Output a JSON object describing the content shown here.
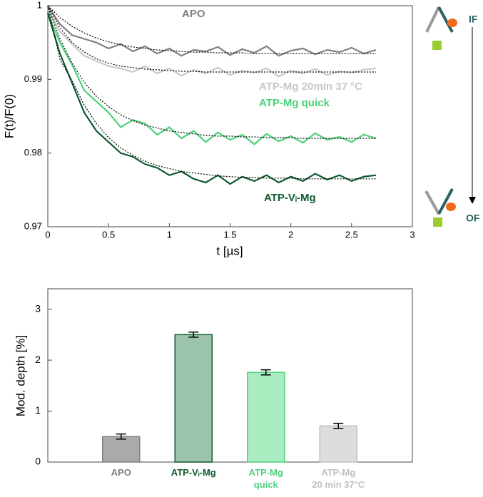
{
  "chart_data": [
    {
      "type": "line",
      "xlabel": "t [µs]",
      "ylabel": "F(t)/F(0)",
      "x": [
        0,
        0.1,
        0.2,
        0.3,
        0.4,
        0.5,
        0.6,
        0.7,
        0.8,
        0.9,
        1.0,
        1.1,
        1.2,
        1.3,
        1.4,
        1.5,
        1.6,
        1.7,
        1.8,
        1.9,
        2.0,
        2.1,
        2.2,
        2.3,
        2.4,
        2.5,
        2.6,
        2.7
      ],
      "xlim": [
        0,
        3
      ],
      "xticks": [
        0,
        0.5,
        1,
        1.5,
        2,
        2.5,
        3
      ],
      "ylim": [
        0.97,
        1
      ],
      "yticks": [
        0.97,
        0.98,
        0.99,
        1
      ],
      "series": [
        {
          "name": "APO",
          "color": "#808080",
          "values": [
            1.0,
            0.9975,
            0.996,
            0.9955,
            0.995,
            0.9942,
            0.9948,
            0.9938,
            0.9945,
            0.9935,
            0.9942,
            0.9932,
            0.994,
            0.9938,
            0.9944,
            0.9933,
            0.9941,
            0.9936,
            0.9945,
            0.9932,
            0.9939,
            0.9942,
            0.9934,
            0.994,
            0.9937,
            0.9943,
            0.9935,
            0.994
          ]
        },
        {
          "name": "ATP-Mg 20min 37 °C",
          "color": "#c8c8c8",
          "values": [
            0.9995,
            0.9965,
            0.9948,
            0.9932,
            0.9925,
            0.9918,
            0.9915,
            0.991,
            0.9918,
            0.9908,
            0.9915,
            0.9905,
            0.9913,
            0.9908,
            0.9916,
            0.9906,
            0.9912,
            0.9909,
            0.9915,
            0.9904,
            0.9912,
            0.9908,
            0.9914,
            0.9906,
            0.9911,
            0.9909,
            0.9913,
            0.9915
          ]
        },
        {
          "name": "ATP-Mg quick",
          "color": "#4cd17a",
          "values": [
            0.999,
            0.995,
            0.992,
            0.9885,
            0.987,
            0.9855,
            0.9835,
            0.9845,
            0.984,
            0.9825,
            0.9835,
            0.982,
            0.983,
            0.9815,
            0.9828,
            0.9818,
            0.9825,
            0.9812,
            0.9826,
            0.9816,
            0.9823,
            0.9814,
            0.9827,
            0.9818,
            0.9822,
            0.9815,
            0.9825,
            0.982
          ]
        },
        {
          "name": "ATP-Vᵢ-Mg",
          "color": "#0e5a2e",
          "values": [
            0.999,
            0.9935,
            0.9895,
            0.9855,
            0.983,
            0.9815,
            0.98,
            0.9795,
            0.9785,
            0.978,
            0.977,
            0.9775,
            0.9765,
            0.976,
            0.977,
            0.9758,
            0.9768,
            0.9762,
            0.977,
            0.976,
            0.9768,
            0.9762,
            0.9772,
            0.9764,
            0.977,
            0.9762,
            0.9768,
            0.977
          ]
        }
      ],
      "fits": [
        {
          "color": "#000000",
          "values": [
            1.0,
            0.9984,
            0.9972,
            0.9963,
            0.9956,
            0.9951,
            0.9947,
            0.9944,
            0.9942,
            0.994,
            0.9939,
            0.9938,
            0.9937,
            0.9937,
            0.9936,
            0.9936,
            0.9936,
            0.9935,
            0.9935,
            0.9935,
            0.9935,
            0.9935,
            0.9935,
            0.9935,
            0.9935,
            0.9935,
            0.9935,
            0.9935
          ]
        },
        {
          "color": "#000000",
          "values": [
            1.0,
            0.997,
            0.995,
            0.9937,
            0.9928,
            0.9922,
            0.9918,
            0.9916,
            0.9914,
            0.9913,
            0.9912,
            0.9911,
            0.9911,
            0.991,
            0.991,
            0.991,
            0.991,
            0.991,
            0.991,
            0.991,
            0.991,
            0.991,
            0.991,
            0.991,
            0.991,
            0.991,
            0.991,
            0.991
          ]
        },
        {
          "color": "#000000",
          "values": [
            1.0,
            0.9955,
            0.9922,
            0.9896,
            0.9877,
            0.9863,
            0.9852,
            0.9844,
            0.9838,
            0.9834,
            0.983,
            0.9828,
            0.9826,
            0.9824,
            0.9823,
            0.9823,
            0.9822,
            0.9822,
            0.9821,
            0.9821,
            0.9821,
            0.982,
            0.982,
            0.982,
            0.982,
            0.982,
            0.982,
            0.982
          ]
        },
        {
          "color": "#000000",
          "values": [
            1.0,
            0.9927,
            0.9898,
            0.9865,
            0.984,
            0.9821,
            0.9807,
            0.9797,
            0.9789,
            0.9783,
            0.9779,
            0.9775,
            0.9773,
            0.9771,
            0.9769,
            0.9768,
            0.9767,
            0.9767,
            0.9766,
            0.9766,
            0.9766,
            0.9765,
            0.9765,
            0.9765,
            0.9765,
            0.9765,
            0.9765,
            0.9765
          ]
        }
      ],
      "state_labels": {
        "top": "IF",
        "bottom": "OF"
      }
    },
    {
      "type": "bar",
      "ylabel": "Mod. depth [%]",
      "categories": [
        "APO",
        "ATP-Vᵢ-Mg",
        "ATP-Mg\nquick",
        "ATP-Mg\n20 min 37°C"
      ],
      "values": [
        0.5,
        2.5,
        1.76,
        0.71
      ],
      "errors": [
        0.05,
        0.05,
        0.05,
        0.05
      ],
      "colors": [
        "#808080",
        "#0e5a2e",
        "#4cd17a",
        "#c0c0c0"
      ],
      "fill_colors": [
        "#aaaaaa",
        "#9cc4ac",
        "#a8ecc0",
        "#dddddd"
      ],
      "ylim": [
        0,
        3.4
      ],
      "yticks": [
        0,
        1,
        2,
        3
      ]
    }
  ]
}
